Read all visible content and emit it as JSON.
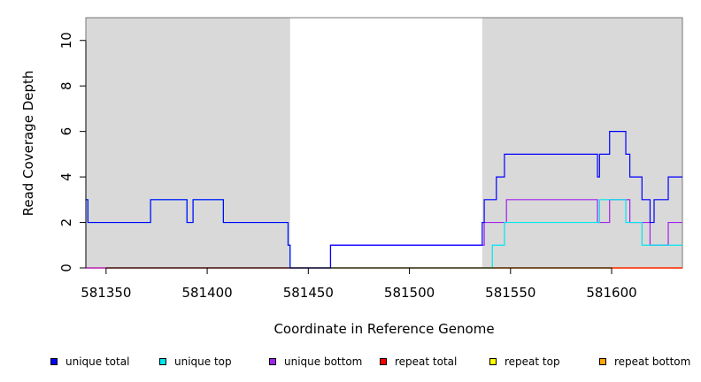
{
  "chart_data": {
    "type": "line",
    "xlabel": "Coordinate in Reference Genome",
    "ylabel": "Read Coverage Depth",
    "xlim": [
      581340,
      581635
    ],
    "ylim": [
      0,
      11
    ],
    "x_ticks": [
      581350,
      581400,
      581450,
      581500,
      581550,
      581600
    ],
    "y_ticks": [
      0,
      2,
      4,
      6,
      8,
      10
    ],
    "shaded_regions": [
      {
        "from": 581340,
        "to": 581441,
        "color": "#d9d9d9"
      },
      {
        "from": 581536,
        "to": 581635,
        "color": "#d9d9d9"
      }
    ],
    "step": true,
    "series": [
      {
        "name": "unique total",
        "color": "#0000ff",
        "x": [
          581340,
          581341,
          581372,
          581390,
          581393,
          581408,
          581440,
          581441,
          581442,
          581461,
          581536,
          581537,
          581543,
          581547,
          581593,
          581594,
          581599,
          581607,
          581609,
          581615,
          581619,
          581621,
          581628,
          581635
        ],
        "y": [
          3,
          2,
          3,
          2,
          3,
          2,
          1,
          0,
          0,
          1,
          2,
          3,
          4,
          5,
          4,
          5,
          6,
          5,
          4,
          3,
          2,
          3,
          4,
          4
        ]
      },
      {
        "name": "unique top",
        "color": "#00e5ee",
        "x": [
          581340,
          581341,
          581372,
          581390,
          581393,
          581408,
          581440,
          581441,
          581442,
          581536,
          581541,
          581547,
          581593,
          581594,
          581607,
          581609,
          581615,
          581621,
          581628,
          581635
        ],
        "y": [
          3,
          2,
          3,
          2,
          3,
          2,
          1,
          0,
          0,
          0,
          1,
          2,
          2,
          3,
          2,
          2,
          1,
          1,
          1,
          1
        ]
      },
      {
        "name": "unique bottom",
        "color": "#a020f0",
        "x": [
          581340,
          581461,
          581536,
          581537,
          581548,
          581593,
          581599,
          581609,
          581619,
          581628,
          581635
        ],
        "y": [
          0,
          1,
          1,
          2,
          3,
          2,
          3,
          2,
          1,
          2,
          2
        ]
      },
      {
        "name": "repeat total",
        "color": "#ff0000",
        "x": [
          581340,
          581635
        ],
        "y": [
          0,
          0
        ]
      },
      {
        "name": "repeat top",
        "color": "#ffff00",
        "x": [
          581340,
          581635
        ],
        "y": [
          0,
          0
        ]
      },
      {
        "name": "repeat bottom",
        "color": "#ffa500",
        "x": [
          581340,
          581635
        ],
        "y": [
          0,
          0
        ]
      }
    ],
    "legend_position": "bottom"
  }
}
